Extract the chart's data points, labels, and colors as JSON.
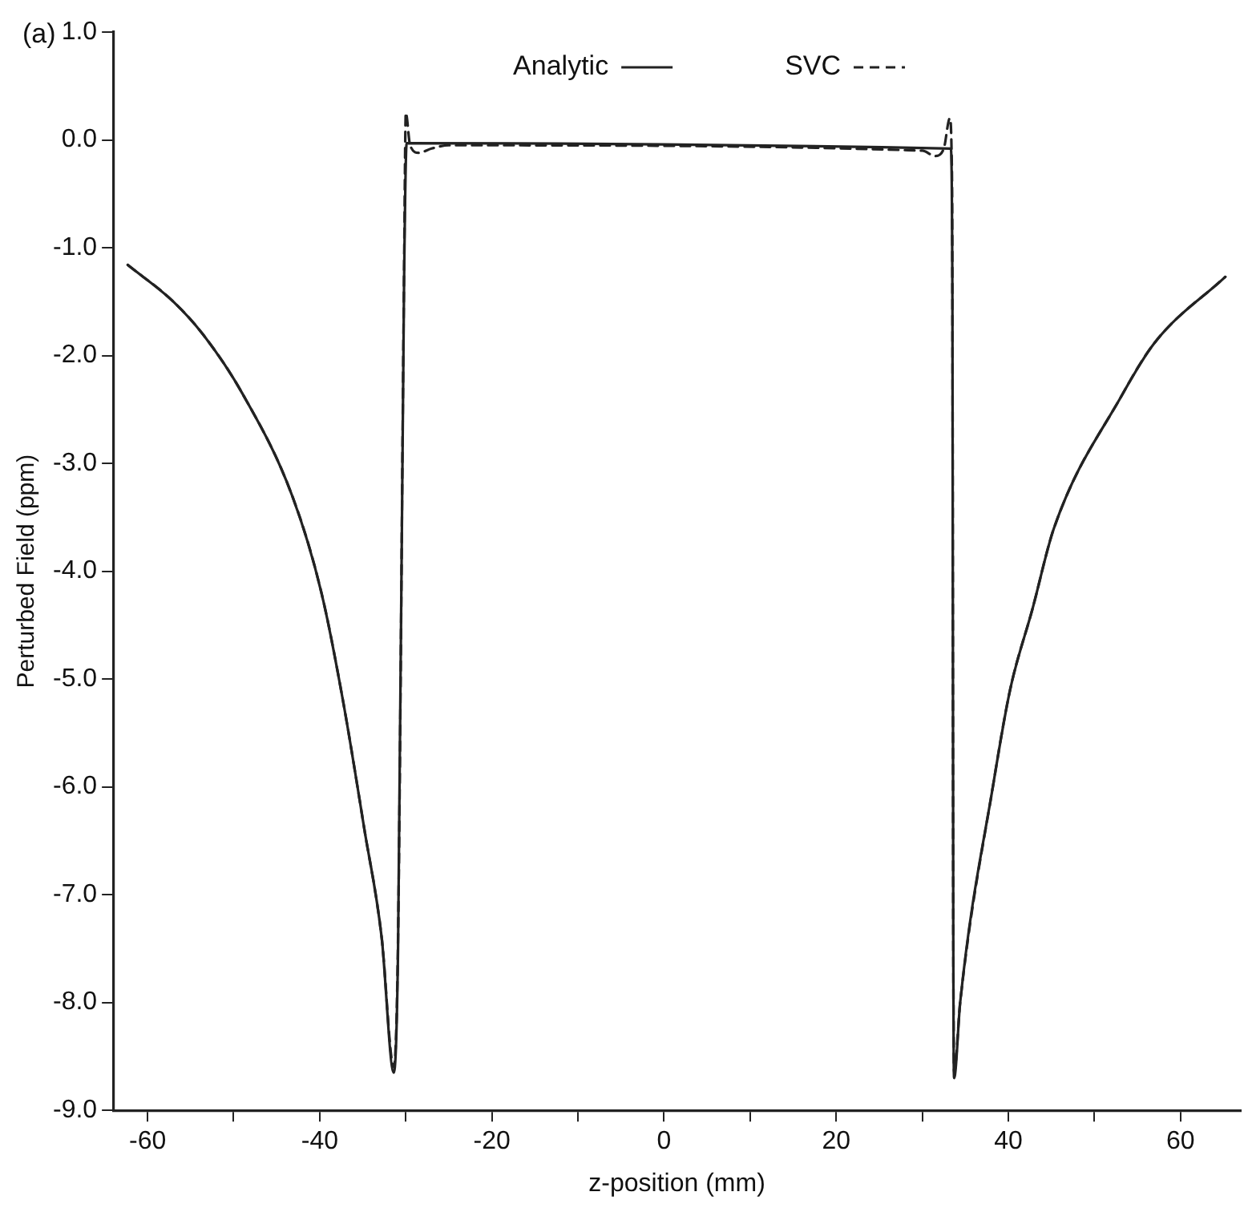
{
  "chart_data": {
    "type": "line",
    "xlabel": "z-position (mm)",
    "ylabel": "Perturbed Field (ppm)",
    "annotations": [
      "(a)"
    ],
    "xlim": [
      -64,
      67
    ],
    "ylim": [
      -9,
      1
    ],
    "xticks": [
      -60,
      {
        "value": -50,
        "label": null
      },
      -40,
      {
        "value": -30,
        "label": null
      },
      -20,
      {
        "value": -10,
        "label": null
      },
      0,
      {
        "value": 10,
        "label": null
      },
      20,
      {
        "value": 30,
        "label": null
      },
      40,
      {
        "value": 50,
        "label": null
      },
      60
    ],
    "yticks": [
      {
        "value": 1,
        "label": "1.0"
      },
      {
        "value": 0,
        "label": "0.0"
      },
      {
        "value": -1,
        "label": "-1.0"
      },
      {
        "value": -2,
        "label": "-2.0"
      },
      {
        "value": -3,
        "label": "-3.0"
      },
      {
        "value": -4,
        "label": "-4.0"
      },
      {
        "value": -5,
        "label": "-5.0"
      },
      {
        "value": -6,
        "label": "-6.0"
      },
      {
        "value": -7,
        "label": "-7.0"
      },
      {
        "value": -8,
        "label": "-8.0"
      },
      {
        "value": -9,
        "label": "-9.0"
      }
    ],
    "grid": false,
    "legend": "top",
    "marker": "none",
    "series": [
      {
        "name": "Analytic",
        "color": "#222222",
        "line_style": "solid",
        "x": [
          -62.3,
          -57,
          -53.5,
          -49,
          -43.2,
          -39.8,
          -37.3,
          -34.8,
          -32.8,
          -31.4,
          -30.9,
          -30.2,
          -29.9,
          33.3,
          33.5,
          33.6,
          33.7,
          34.4,
          38.3,
          40.2,
          42.8,
          45.3,
          53.1,
          57,
          65.2
        ],
        "values": [
          -1.16,
          -1.5,
          -1.81,
          -2.35,
          -3.3,
          -4.2,
          -5.2,
          -6.4,
          -7.4,
          -8.65,
          -7.5,
          -1.3,
          -0.03,
          -0.08,
          -1.5,
          -7.4,
          -8.7,
          -8.0,
          -5.95,
          -5.1,
          -4.35,
          -3.6,
          -2.38,
          -1.88,
          -1.27
        ]
      },
      {
        "name": "SVC",
        "color": "#222222",
        "line_style": "dashed",
        "x": [
          -62.3,
          -57,
          -53.5,
          -49,
          -43.2,
          -39.8,
          -37.3,
          -34.8,
          -32.8,
          -31.4,
          -30.9,
          -30.2,
          -30,
          -29.5,
          -28.5,
          -27,
          -25,
          30,
          31.5,
          32.5,
          33.2,
          33.4,
          33.5,
          33.6,
          33.7,
          34.4,
          38.3,
          40.2,
          42.8,
          45.3,
          53.1,
          57,
          65.2
        ],
        "values": [
          -1.16,
          -1.5,
          -1.81,
          -2.35,
          -3.3,
          -4.2,
          -5.2,
          -6.4,
          -7.4,
          -8.6,
          -7.4,
          -1.2,
          0.25,
          -0.05,
          -0.12,
          -0.08,
          -0.05,
          -0.1,
          -0.15,
          -0.08,
          0.2,
          -0.1,
          -1.4,
          -7.3,
          -8.65,
          -8.0,
          -5.95,
          -5.1,
          -4.35,
          -3.6,
          -2.38,
          -1.88,
          -1.27
        ]
      }
    ]
  }
}
